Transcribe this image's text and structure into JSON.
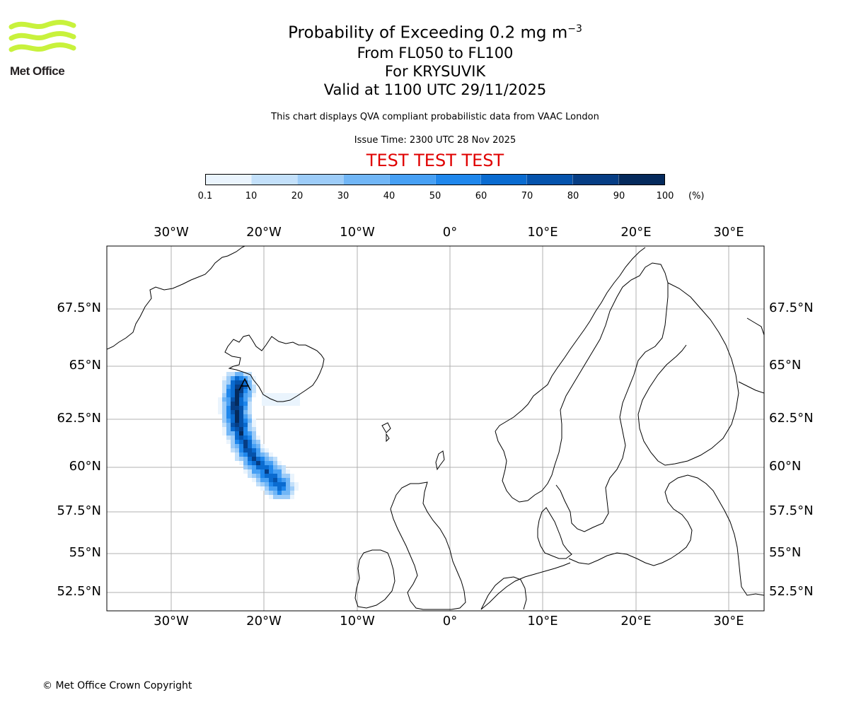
{
  "logo": {
    "text": "Met Office",
    "color": "#c8f23c"
  },
  "title": {
    "line1": "Probability of Exceeding 0.2 mg m",
    "line1_sup": "−3",
    "line2": "From FL050 to FL100",
    "line3": "For KRYSUVIK",
    "line4": "Valid at 1100 UTC 29/11/2025"
  },
  "notes": {
    "description": "This chart displays QVA compliant probabilistic data from VAAC London",
    "issue_time": "Issue Time: 2300 UTC 28 Nov 2025",
    "test_banner": "TEST TEST TEST"
  },
  "colorbar": {
    "ticks": [
      "0.1",
      "10",
      "20",
      "30",
      "40",
      "50",
      "60",
      "70",
      "80",
      "90",
      "100"
    ],
    "unit": "(%)",
    "colors": [
      "#eaf4fd",
      "#c3e0fa",
      "#9dccf8",
      "#71b6f6",
      "#47a0f4",
      "#1f87ec",
      "#0a6bd0",
      "#0553ac",
      "#063d84",
      "#052a5c"
    ]
  },
  "map": {
    "lon_labels": [
      "30°W",
      "20°W",
      "10°W",
      "0°",
      "10°E",
      "20°E",
      "30°E"
    ],
    "lat_labels": [
      "67.5°N",
      "65°N",
      "62.5°N",
      "60°N",
      "57.5°N",
      "55°N",
      "52.5°N"
    ],
    "lon_range": [
      -37,
      34
    ],
    "lat_range": [
      51.5,
      70.3
    ],
    "grid": true,
    "gridline_lons": [
      -30,
      -20,
      -10,
      0,
      10,
      20,
      30
    ],
    "gridline_lats": [
      67.5,
      65,
      62.5,
      60,
      57.5,
      55,
      52.5
    ],
    "plume_source": "KRYSUVIK"
  },
  "footer": {
    "copyright": "© Met Office Crown Copyright"
  }
}
